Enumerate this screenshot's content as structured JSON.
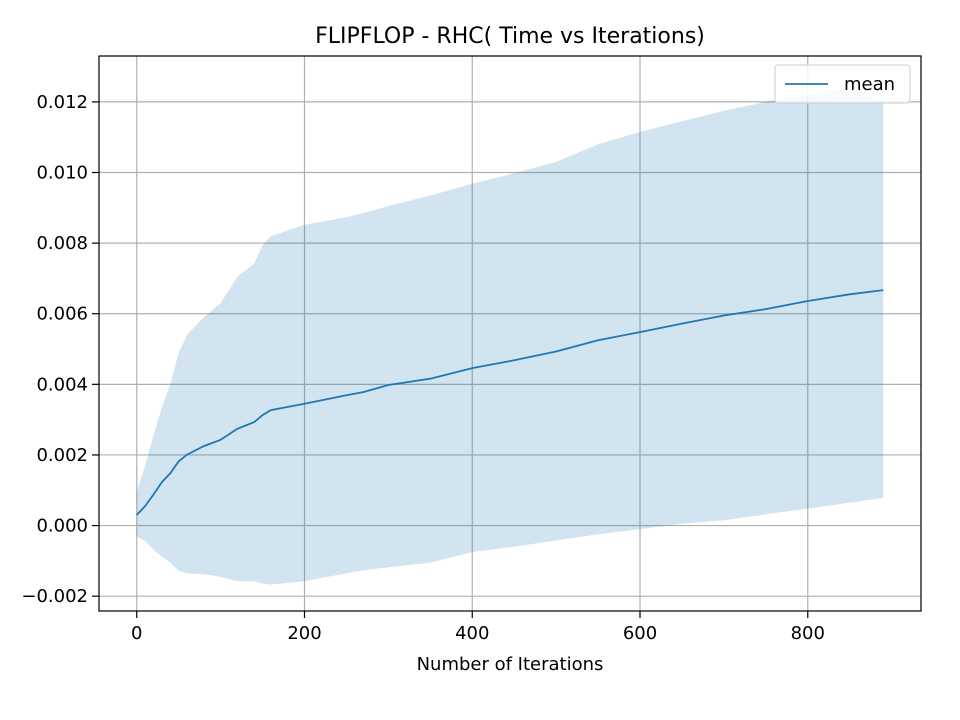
{
  "chart_data": {
    "type": "line",
    "title": "FLIPFLOP - RHC( Time vs Iterations)",
    "xlabel": "Number of Iterations",
    "ylabel": "",
    "xlim": [
      -45,
      935
    ],
    "ylim": [
      -0.00242,
      0.0133
    ],
    "xticks": [
      0,
      200,
      400,
      600,
      800
    ],
    "xtick_labels": [
      "0",
      "200",
      "400",
      "600",
      "800"
    ],
    "yticks": [
      -0.002,
      0.0,
      0.002,
      0.004,
      0.006,
      0.008,
      0.01,
      0.012
    ],
    "ytick_labels": [
      "−0.002",
      "0.000",
      "0.002",
      "0.004",
      "0.006",
      "0.008",
      "0.010",
      "0.012"
    ],
    "grid": true,
    "legend": {
      "position": "top-right",
      "entries": [
        "mean"
      ]
    },
    "colors": {
      "line": "#1f77b4",
      "band": "#1f77b4",
      "band_opacity": 0.2,
      "grid": "#b0b0b0"
    },
    "series": [
      {
        "name": "mean",
        "x": [
          0,
          10,
          20,
          30,
          40,
          50,
          60,
          80,
          100,
          120,
          140,
          150,
          160,
          200,
          250,
          270,
          300,
          350,
          400,
          450,
          500,
          550,
          600,
          650,
          700,
          750,
          800,
          850,
          890
        ],
        "values": [
          0.0003,
          0.00055,
          0.00088,
          0.00123,
          0.00148,
          0.00182,
          0.00201,
          0.00225,
          0.00243,
          0.00274,
          0.00293,
          0.00313,
          0.00327,
          0.00345,
          0.00369,
          0.00378,
          0.00398,
          0.00416,
          0.00446,
          0.00468,
          0.00493,
          0.00525,
          0.00548,
          0.00572,
          0.00595,
          0.00613,
          0.00636,
          0.00655,
          0.00667
        ],
        "lower": [
          -0.0003,
          -0.00045,
          -0.00068,
          -0.00088,
          -0.00105,
          -0.00128,
          -0.00135,
          -0.00138,
          -0.00145,
          -0.00158,
          -0.00158,
          -0.00165,
          -0.00167,
          -0.00158,
          -0.00135,
          -0.00127,
          -0.00118,
          -0.00105,
          -0.00075,
          -0.0006,
          -0.00042,
          -0.00025,
          -0.0001,
          5e-05,
          0.00015,
          0.00032,
          0.00048,
          0.00065,
          0.00078
        ],
        "upper": [
          0.00095,
          0.0017,
          0.00255,
          0.00335,
          0.004,
          0.0049,
          0.0054,
          0.0059,
          0.0063,
          0.00705,
          0.00742,
          0.00795,
          0.0082,
          0.00852,
          0.00873,
          0.00885,
          0.00905,
          0.00935,
          0.00968,
          0.00998,
          0.0103,
          0.0108,
          0.01115,
          0.01145,
          0.01175,
          0.012,
          0.0122,
          0.0124,
          0.012
        ]
      }
    ]
  }
}
